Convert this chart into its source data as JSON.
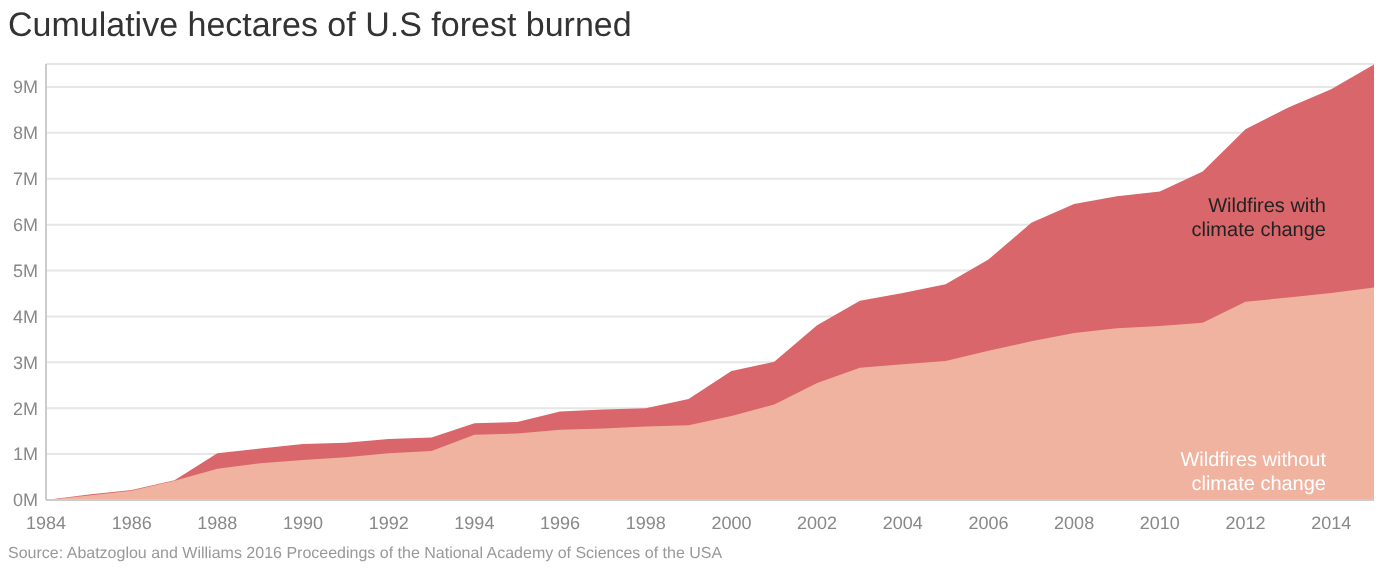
{
  "chart_data": {
    "type": "area",
    "title": "Cumulative hectares of U.S forest burned",
    "x": [
      1984,
      1985,
      1986,
      1987,
      1988,
      1989,
      1990,
      1991,
      1992,
      1993,
      1994,
      1995,
      1996,
      1997,
      1998,
      1999,
      2000,
      2001,
      2002,
      2003,
      2004,
      2005,
      2006,
      2007,
      2008,
      2009,
      2010,
      2011,
      2012,
      2013,
      2014,
      2015
    ],
    "series": [
      {
        "name": "Wildfires with climate change",
        "color": "#d9666a",
        "values": [
          0,
          0.12,
          0.22,
          0.43,
          1.02,
          1.12,
          1.22,
          1.25,
          1.33,
          1.36,
          1.67,
          1.7,
          1.93,
          1.97,
          2.0,
          2.2,
          2.81,
          3.01,
          3.81,
          4.34,
          4.51,
          4.7,
          5.24,
          6.04,
          6.45,
          6.62,
          6.72,
          7.16,
          8.08,
          8.55,
          8.95,
          9.49
        ]
      },
      {
        "name": "Wildfires without climate change",
        "color": "#f0b3a0",
        "values": [
          0,
          0.1,
          0.2,
          0.42,
          0.68,
          0.8,
          0.87,
          0.93,
          1.02,
          1.07,
          1.42,
          1.45,
          1.53,
          1.56,
          1.6,
          1.63,
          1.83,
          2.08,
          2.55,
          2.88,
          2.96,
          3.03,
          3.25,
          3.46,
          3.64,
          3.74,
          3.79,
          3.86,
          4.32,
          4.41,
          4.51,
          4.63
        ]
      }
    ],
    "xlim": [
      1984,
      2015
    ],
    "xticks": [
      1984,
      1986,
      1988,
      1990,
      1992,
      1994,
      1996,
      1998,
      2000,
      2002,
      2004,
      2006,
      2008,
      2010,
      2012,
      2014
    ],
    "ylim": [
      0,
      9.5
    ],
    "yticks": [
      {
        "value": 0,
        "label": "0M"
      },
      {
        "value": 1,
        "label": "1M"
      },
      {
        "value": 2,
        "label": "2M"
      },
      {
        "value": 3,
        "label": "3M"
      },
      {
        "value": 4,
        "label": "4M"
      },
      {
        "value": 5,
        "label": "5M"
      },
      {
        "value": 6,
        "label": "6M"
      },
      {
        "value": 7,
        "label": "7M"
      },
      {
        "value": 8,
        "label": "8M"
      },
      {
        "value": 9,
        "label": "9M"
      }
    ],
    "grid": "y",
    "legend": false,
    "annotations": [
      "Source: Abatzoglou and Williams 2016 Proceedings of the National Academy of Sciences of the USA"
    ]
  }
}
